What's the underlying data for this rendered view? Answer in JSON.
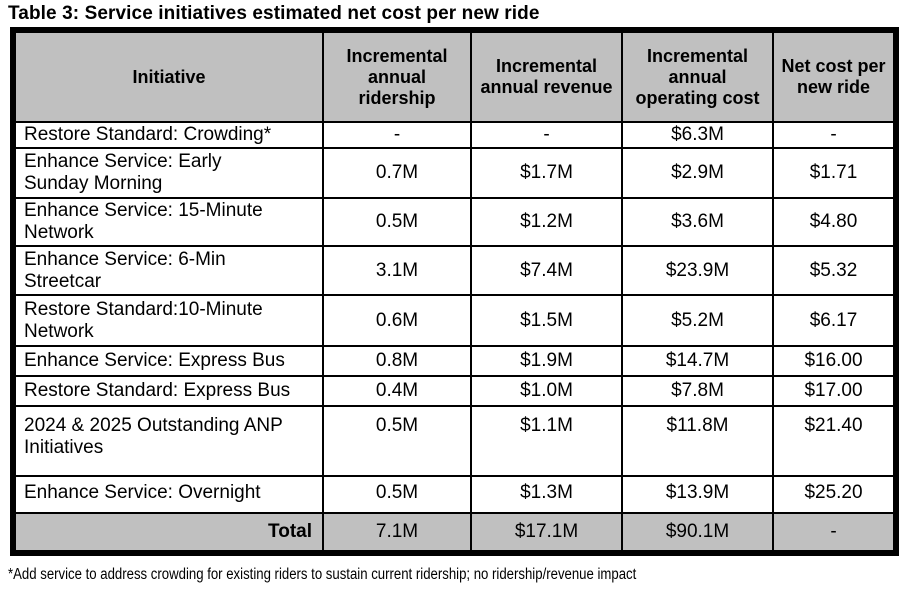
{
  "page": {
    "title": "Table 3: Service initiatives estimated net cost per new ride",
    "footnote": "*Add service to address crowding for existing riders to sustain current ridership; no ridership/revenue impact"
  },
  "colors": {
    "header_background": "#c0c0c0",
    "total_row_background": "#c0c0c0",
    "border": "#000000",
    "text": "#000000",
    "page_background": "#ffffff"
  },
  "table": {
    "headers": [
      "Initiative",
      "Incremental annual ridership",
      "Incremental annual revenue",
      "Incremental annual operating cost",
      "Net cost per new ride"
    ],
    "rows": [
      {
        "initiative": "Restore Standard: Crowding*",
        "ridership": "-",
        "revenue": "-",
        "operating": "$6.3M",
        "net": "-"
      },
      {
        "initiative": "Enhance Service: Early\nSunday Morning",
        "ridership": "0.7M",
        "revenue": "$1.7M",
        "operating": "$2.9M",
        "net": "$1.71"
      },
      {
        "initiative": "Enhance Service: 15-Minute\nNetwork",
        "ridership": "0.5M",
        "revenue": "$1.2M",
        "operating": "$3.6M",
        "net": "$4.80"
      },
      {
        "initiative": "Enhance Service: 6-Min\nStreetcar",
        "ridership": "3.1M",
        "revenue": "$7.4M",
        "operating": "$23.9M",
        "net": "$5.32"
      },
      {
        "initiative": "Restore Standard:10-Minute\nNetwork",
        "ridership": "0.6M",
        "revenue": "$1.5M",
        "operating": "$5.2M",
        "net": "$6.17"
      },
      {
        "initiative": "Enhance Service: Express Bus",
        "ridership": "0.8M",
        "revenue": "$1.9M",
        "operating": "$14.7M",
        "net": "$16.00"
      },
      {
        "initiative": "Restore Standard: Express Bus",
        "ridership": "0.4M",
        "revenue": "$1.0M",
        "operating": "$7.8M",
        "net": "$17.00"
      },
      {
        "initiative": "2024 & 2025 Outstanding ANP\nInitiatives",
        "ridership": "0.5M",
        "revenue": "$1.1M",
        "operating": "$11.8M",
        "net": "$21.40"
      },
      {
        "initiative": "Enhance Service: Overnight",
        "ridership": "0.5M",
        "revenue": "$1.3M",
        "operating": "$13.9M",
        "net": "$25.20"
      }
    ],
    "total_row": {
      "label": "Total",
      "ridership": "7.1M",
      "revenue": "$17.1M",
      "operating": "$90.1M",
      "net": "-"
    }
  }
}
